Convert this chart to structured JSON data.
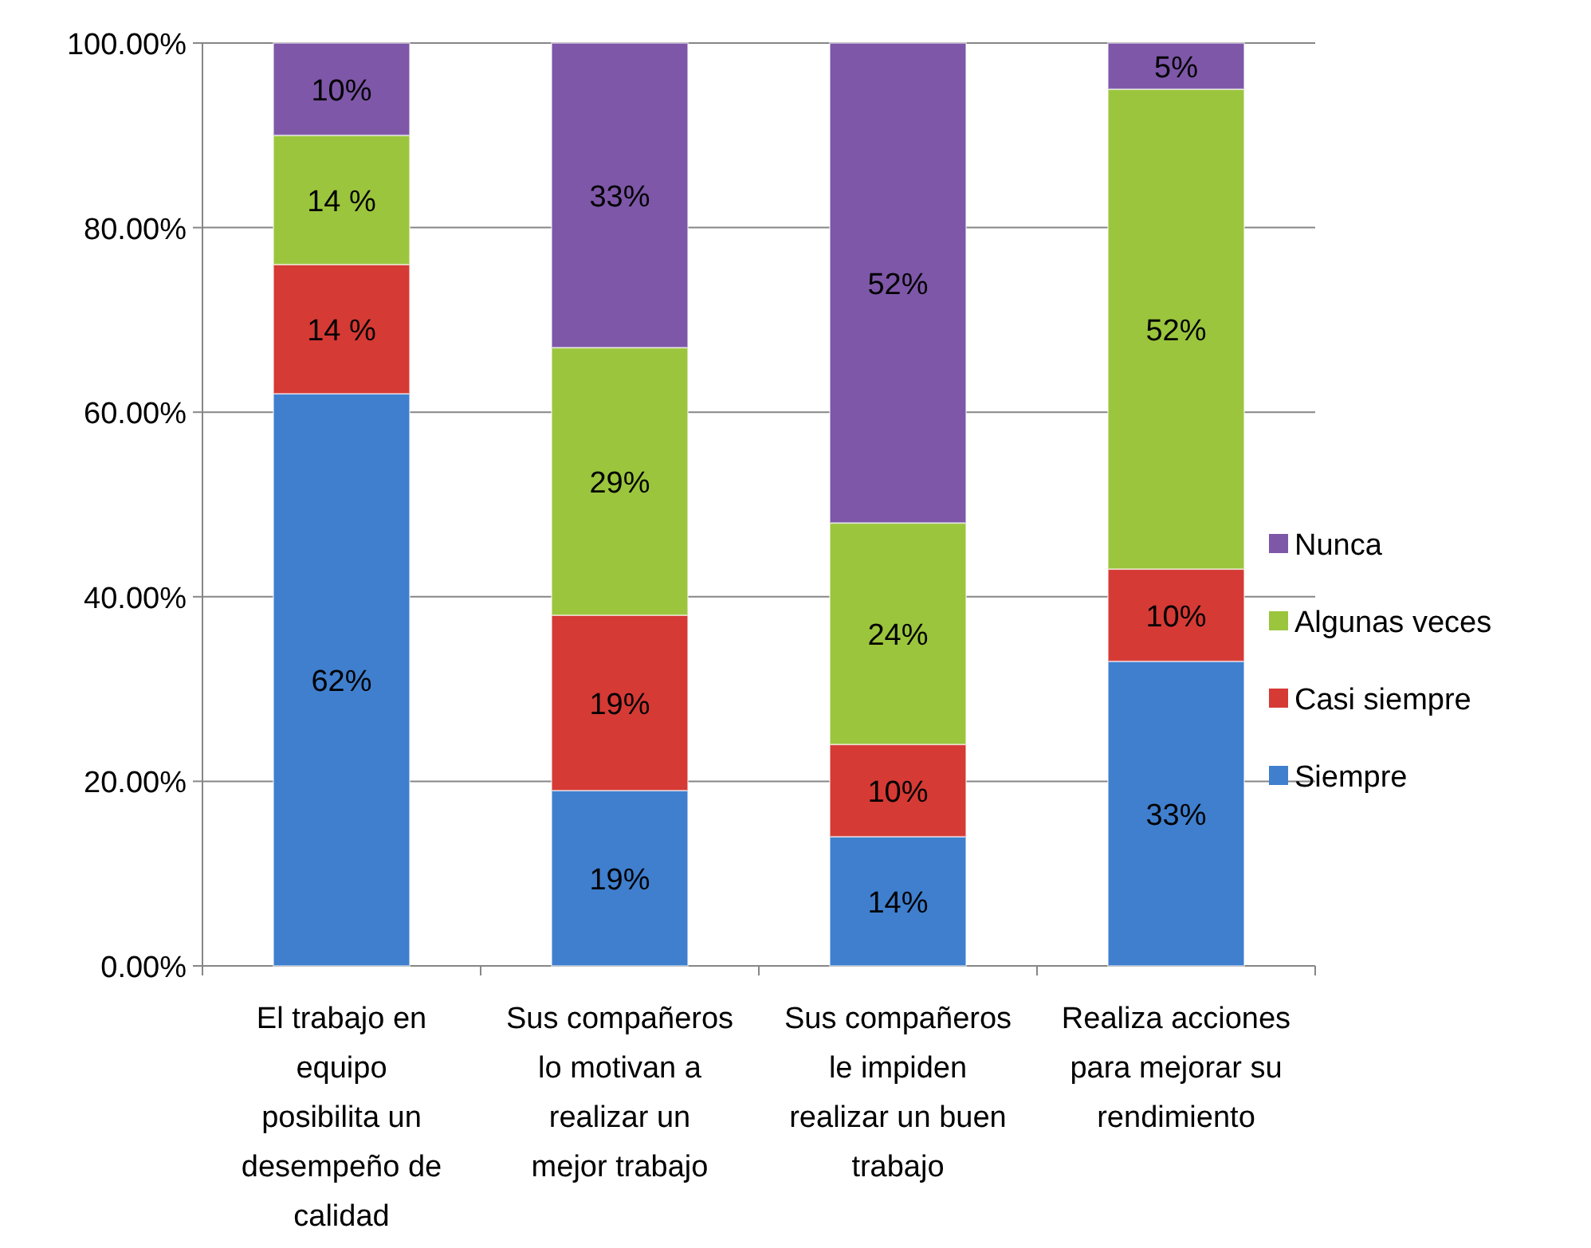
{
  "chart_data": {
    "type": "bar",
    "stacked": true,
    "categories": [
      "El trabajo en equipo posibilita un desempeño de calidad",
      "Sus compañeros lo motivan a realizar un mejor trabajo",
      "Sus compañeros le impiden realizar un buen trabajo",
      "Realiza acciones para mejorar su rendimiento"
    ],
    "series": [
      {
        "name": "Siempre",
        "color": "#3f7fce",
        "values": [
          62,
          19,
          14,
          33
        ],
        "value_labels": [
          "62%",
          "19%",
          "14%",
          "33%"
        ]
      },
      {
        "name": "Casi siempre",
        "color": "#d53a35",
        "values": [
          14,
          19,
          10,
          10
        ],
        "value_labels": [
          "14 %",
          "19%",
          "10%",
          "10%"
        ]
      },
      {
        "name": "Algunas veces",
        "color": "#9bc53d",
        "values": [
          14,
          29,
          24,
          52
        ],
        "value_labels": [
          "14 %",
          "29%",
          "24%",
          "52%"
        ]
      },
      {
        "name": "Nunca",
        "color": "#7e57a8",
        "values": [
          10,
          33,
          52,
          5
        ],
        "value_labels": [
          "10%",
          "33%",
          "52%",
          "5%"
        ]
      }
    ],
    "ylim": [
      0,
      100
    ],
    "yticks": [
      {
        "value": 0,
        "label": "0.00%"
      },
      {
        "value": 20,
        "label": "20.00%"
      },
      {
        "value": 40,
        "label": "40.00%"
      },
      {
        "value": 60,
        "label": "60.00%"
      },
      {
        "value": 80,
        "label": "80.00%"
      },
      {
        "value": 100,
        "label": "100.00%"
      }
    ],
    "grid": "y",
    "legend": "right"
  }
}
